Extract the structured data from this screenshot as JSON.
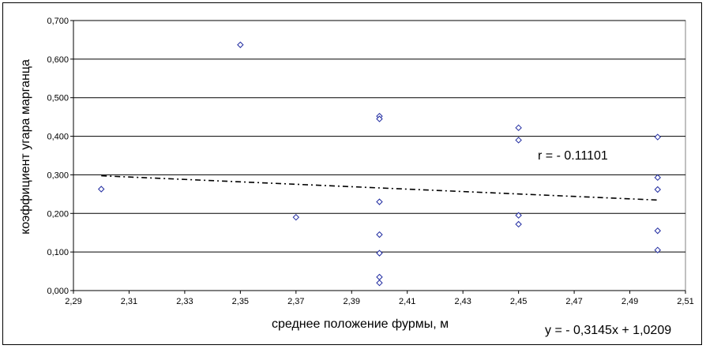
{
  "chart_data": {
    "type": "scatter",
    "title": "",
    "xlabel": "среднее  положение фурмы, м",
    "ylabel": "коэффициент угара марганца",
    "xlim": [
      2.29,
      2.51
    ],
    "ylim": [
      0,
      0.7
    ],
    "x_ticks": [
      "2,29",
      "2,31",
      "2,33",
      "2,35",
      "2,37",
      "2,39",
      "2,41",
      "2,43",
      "2,45",
      "2,47",
      "2,49",
      "2,51"
    ],
    "y_ticks": [
      "0,000",
      "0,100",
      "0,200",
      "0,300",
      "0,400",
      "0,500",
      "0,600",
      "0,700"
    ],
    "grid": "horizontal",
    "legend": "none",
    "marker": "diamond",
    "marker_color": "#1f2aa0",
    "trend_color": "#000000",
    "points": [
      {
        "x": 2.3,
        "y": 0.263
      },
      {
        "x": 2.35,
        "y": 0.637
      },
      {
        "x": 2.37,
        "y": 0.19
      },
      {
        "x": 2.4,
        "y": 0.452
      },
      {
        "x": 2.4,
        "y": 0.445
      },
      {
        "x": 2.4,
        "y": 0.23
      },
      {
        "x": 2.4,
        "y": 0.145
      },
      {
        "x": 2.4,
        "y": 0.097
      },
      {
        "x": 2.4,
        "y": 0.035
      },
      {
        "x": 2.4,
        "y": 0.02
      },
      {
        "x": 2.45,
        "y": 0.422
      },
      {
        "x": 2.45,
        "y": 0.39
      },
      {
        "x": 2.45,
        "y": 0.195
      },
      {
        "x": 2.45,
        "y": 0.172
      },
      {
        "x": 2.5,
        "y": 0.398
      },
      {
        "x": 2.5,
        "y": 0.293
      },
      {
        "x": 2.5,
        "y": 0.262
      },
      {
        "x": 2.5,
        "y": 0.155
      },
      {
        "x": 2.5,
        "y": 0.105
      }
    ],
    "trendline": {
      "slope": -0.3145,
      "intercept": 1.0209,
      "x_start": 2.3,
      "x_end": 2.5,
      "style": "dash-dot"
    },
    "annotations": {
      "r": "r = - 0.11101",
      "equation": "y = - 0,3145x + 1,0209"
    }
  }
}
